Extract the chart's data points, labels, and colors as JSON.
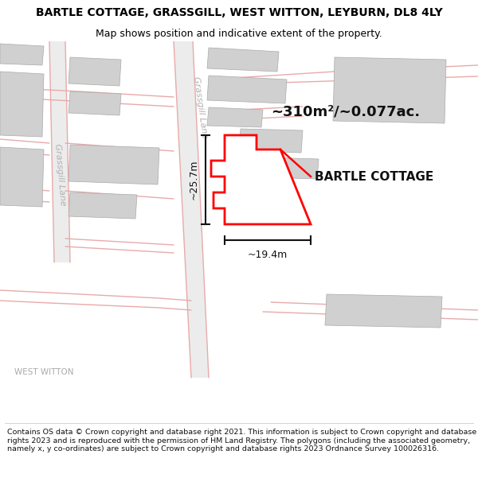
{
  "title": "BARTLE COTTAGE, GRASSGILL, WEST WITTON, LEYBURN, DL8 4LY",
  "subtitle": "Map shows position and indicative extent of the property.",
  "footer": "Contains OS data © Crown copyright and database right 2021. This information is subject to Crown copyright and database rights 2023 and is reproduced with the permission of HM Land Registry. The polygons (including the associated geometry, namely x, y co-ordinates) are subject to Crown copyright and database rights 2023 Ordnance Survey 100026316.",
  "area_label": "~310m²/~0.077ac.",
  "property_label": "BARTLE COTTAGE",
  "dim_vertical": "~25.7m",
  "dim_horizontal": "~19.4m",
  "road_label_upper": "Grassgill Lane",
  "road_label_lower": "Grassgill Lane",
  "town_label": "WEST WITTON",
  "bg_color": "#ffffff",
  "map_bg": "#f8f8f8",
  "building_color": "#d0d0d0",
  "property_outline_color": "#ff0000",
  "road_strip_color": "#ececec",
  "road_line_color": "#e8aaaa",
  "dim_line_color": "#111111",
  "title_fontsize": 10,
  "subtitle_fontsize": 9,
  "footer_fontsize": 6.8
}
